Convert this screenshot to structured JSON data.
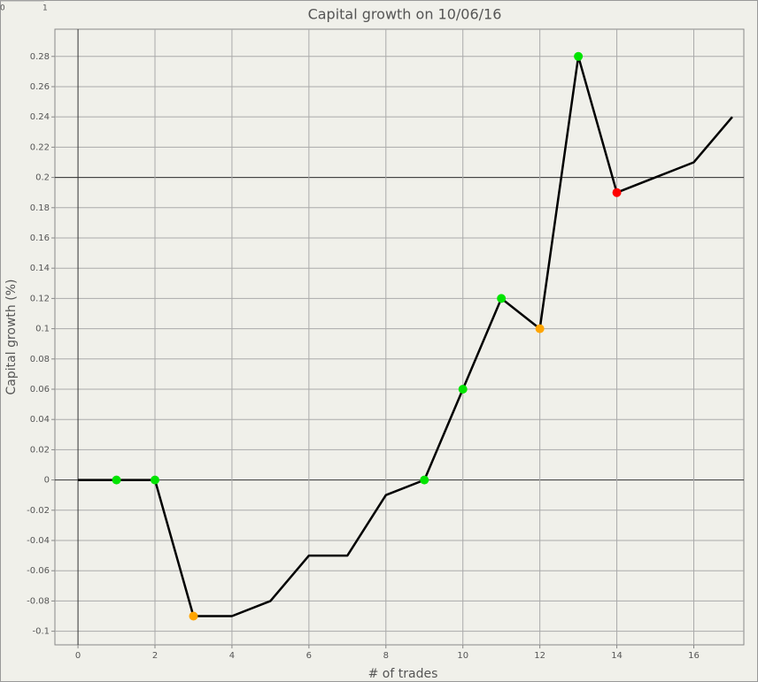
{
  "corner_labels": [
    "0",
    "1"
  ],
  "chart_data": {
    "type": "line",
    "title": "Capital growth on 10/06/16",
    "xlabel": "# of trades",
    "ylabel": "Capital growth (%)",
    "x": [
      0,
      1,
      2,
      3,
      4,
      5,
      6,
      7,
      8,
      9,
      10,
      11,
      12,
      13,
      14,
      15,
      16,
      17
    ],
    "series": [
      {
        "color": "#000000",
        "values": [
          0,
          0,
          0,
          -0.09,
          -0.09,
          -0.08,
          -0.05,
          -0.05,
          -0.01,
          0,
          0.06,
          0.12,
          0.1,
          0.28,
          0.19,
          0.2,
          0.21,
          0.24
        ],
        "point_colors": [
          null,
          "#00e400",
          "#00e400",
          "#ffa500",
          null,
          null,
          null,
          null,
          null,
          "#00e400",
          "#00e400",
          "#00e400",
          "#ffa500",
          "#00e400",
          "#ff0000",
          null,
          null,
          null
        ]
      }
    ],
    "xlim": [
      -0.6,
      17.3
    ],
    "ylim": [
      -0.109,
      0.298
    ],
    "xticks": [
      0,
      2,
      4,
      6,
      8,
      10,
      12,
      14,
      16
    ],
    "yticks": [
      -0.1,
      -0.08,
      -0.06,
      -0.04,
      -0.02,
      0,
      0.02,
      0.04,
      0.06,
      0.08,
      0.1,
      0.12,
      0.14,
      0.16,
      0.18,
      0.2,
      0.22,
      0.24,
      0.26,
      0.28
    ],
    "highlight_y": 0.2,
    "grid": true
  }
}
